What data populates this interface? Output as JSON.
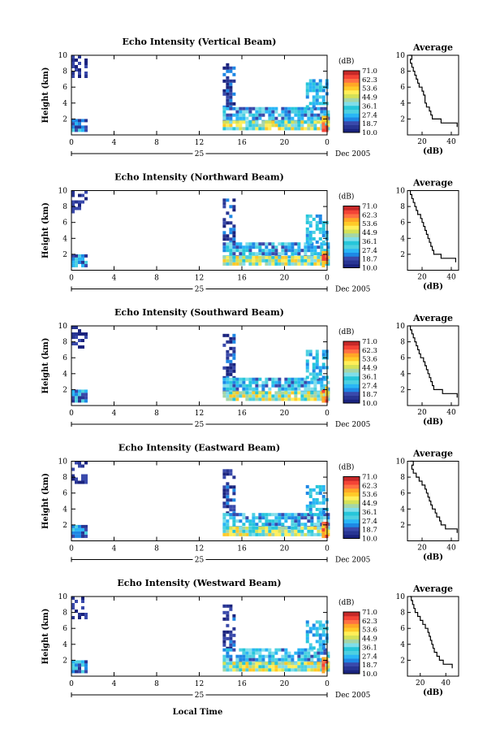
{
  "figure": {
    "x_label": "Local Time",
    "date_label": "Dec 2005",
    "day_label": "25"
  },
  "colorbar": {
    "unit": "(dB)",
    "ticks": [
      "71.0",
      "62.3",
      "53.6",
      "44.9",
      "36.1",
      "27.4",
      "18.7",
      "10.0"
    ],
    "colors": [
      "#1a237e",
      "#283593",
      "#3949ab",
      "#1e88e5",
      "#29b6f6",
      "#4dd0e1",
      "#26c6da",
      "#80deea",
      "#a5d6a7",
      "#d4e157",
      "#ffee58",
      "#ffca28",
      "#ffa726",
      "#ff7043",
      "#f44336",
      "#c62828"
    ]
  },
  "chart_data": [
    {
      "type": "heatmap",
      "title": "Echo Intensity (Vertical Beam)",
      "ylabel": "Height (km)",
      "xlim": [
        0,
        24
      ],
      "ylim": [
        0,
        10
      ],
      "xticks": [
        "0",
        "4",
        "8",
        "12",
        "16",
        "20",
        "0"
      ],
      "yticks": [
        "2",
        "4",
        "6",
        "8",
        "10"
      ],
      "profile": {
        "title": "Average",
        "xlabel": "(dB)",
        "xlim": [
          10,
          45
        ],
        "xticks": [
          "20",
          "40"
        ],
        "heights": [
          1,
          1.5,
          2,
          2.5,
          3,
          3.5,
          4,
          4.5,
          5,
          5.5,
          6,
          6.5,
          7,
          7.5,
          8,
          8.5,
          9,
          9.5,
          10
        ],
        "values": [
          44,
          33,
          27,
          26,
          25,
          23,
          22,
          22,
          21,
          20,
          18,
          17,
          16,
          15,
          14,
          13,
          12,
          13,
          11
        ]
      }
    },
    {
      "type": "heatmap",
      "title": "Echo Intensity (Northward Beam)",
      "ylabel": "Height (km)",
      "xlim": [
        0,
        24
      ],
      "ylim": [
        0,
        10
      ],
      "xticks": [
        "0",
        "4",
        "8",
        "12",
        "16",
        "20",
        "0"
      ],
      "yticks": [
        "2",
        "4",
        "6",
        "8",
        "10"
      ],
      "profile": {
        "title": "Average",
        "xlabel": "(dB)",
        "xlim": [
          10,
          45
        ],
        "xticks": [
          "20",
          "40"
        ],
        "heights": [
          1,
          1.5,
          2,
          2.5,
          3,
          3.5,
          4,
          4.5,
          5,
          5.5,
          6,
          6.5,
          7,
          7.5,
          8,
          8.5,
          9,
          9.5,
          10
        ],
        "values": [
          43,
          33,
          28,
          27,
          26,
          25,
          24,
          23,
          22,
          21,
          20,
          19,
          17,
          16,
          15,
          14,
          13,
          12,
          11
        ]
      }
    },
    {
      "type": "heatmap",
      "title": "Echo Intensity (Southward Beam)",
      "ylabel": "Height (km)",
      "xlim": [
        0,
        24
      ],
      "ylim": [
        0,
        10
      ],
      "xticks": [
        "0",
        "4",
        "8",
        "12",
        "16",
        "20",
        "0"
      ],
      "yticks": [
        "2",
        "4",
        "6",
        "8",
        "10"
      ],
      "profile": {
        "title": "Average",
        "xlabel": "(dB)",
        "xlim": [
          10,
          45
        ],
        "xticks": [
          "20",
          "40"
        ],
        "heights": [
          1,
          1.5,
          2,
          2.5,
          3,
          3.5,
          4,
          4.5,
          5,
          5.5,
          6,
          6.5,
          7,
          7.5,
          8,
          8.5,
          9,
          9.5,
          10
        ],
        "values": [
          44,
          34,
          28,
          27,
          26,
          25,
          24,
          23,
          22,
          21,
          19,
          18,
          17,
          16,
          15,
          14,
          13,
          12,
          11
        ]
      }
    },
    {
      "type": "heatmap",
      "title": "Echo Intensity (Eastward Beam)",
      "ylabel": "Height (km)",
      "xlim": [
        0,
        24
      ],
      "ylim": [
        0,
        10
      ],
      "xticks": [
        "0",
        "4",
        "8",
        "12",
        "16",
        "20",
        "0"
      ],
      "yticks": [
        "2",
        "4",
        "6",
        "8",
        "10"
      ],
      "profile": {
        "title": "Average",
        "xlabel": "(dB)",
        "xlim": [
          10,
          45
        ],
        "xticks": [
          "20",
          "40"
        ],
        "heights": [
          1,
          1.5,
          2,
          2.5,
          3,
          3.5,
          4,
          4.5,
          5,
          5.5,
          6,
          6.5,
          7,
          7.5,
          8,
          8.5,
          9,
          9.5,
          10
        ],
        "values": [
          44,
          36,
          33,
          32,
          30,
          29,
          27,
          26,
          25,
          24,
          23,
          22,
          20,
          18,
          16,
          14,
          13,
          14,
          12
        ]
      }
    },
    {
      "type": "heatmap",
      "title": "Echo Intensity (Westward Beam)",
      "ylabel": "Height (km)",
      "xlim": [
        0,
        24
      ],
      "ylim": [
        0,
        10
      ],
      "xticks": [
        "0",
        "4",
        "8",
        "12",
        "16",
        "20",
        "0"
      ],
      "yticks": [
        "2",
        "4",
        "6",
        "8",
        "10"
      ],
      "profile": {
        "title": "Average",
        "xlabel": "(dB)",
        "xlim": [
          10,
          50
        ],
        "xticks": [
          "20",
          "40"
        ],
        "heights": [
          1,
          1.5,
          2,
          2.5,
          3,
          3.5,
          4,
          4.5,
          5,
          5.5,
          6,
          6.5,
          7,
          7.5,
          8,
          8.5,
          9,
          9.5,
          10
        ],
        "values": [
          45,
          38,
          35,
          33,
          31,
          30,
          29,
          28,
          27,
          26,
          24,
          22,
          20,
          18,
          16,
          15,
          14,
          13,
          12
        ]
      }
    }
  ]
}
